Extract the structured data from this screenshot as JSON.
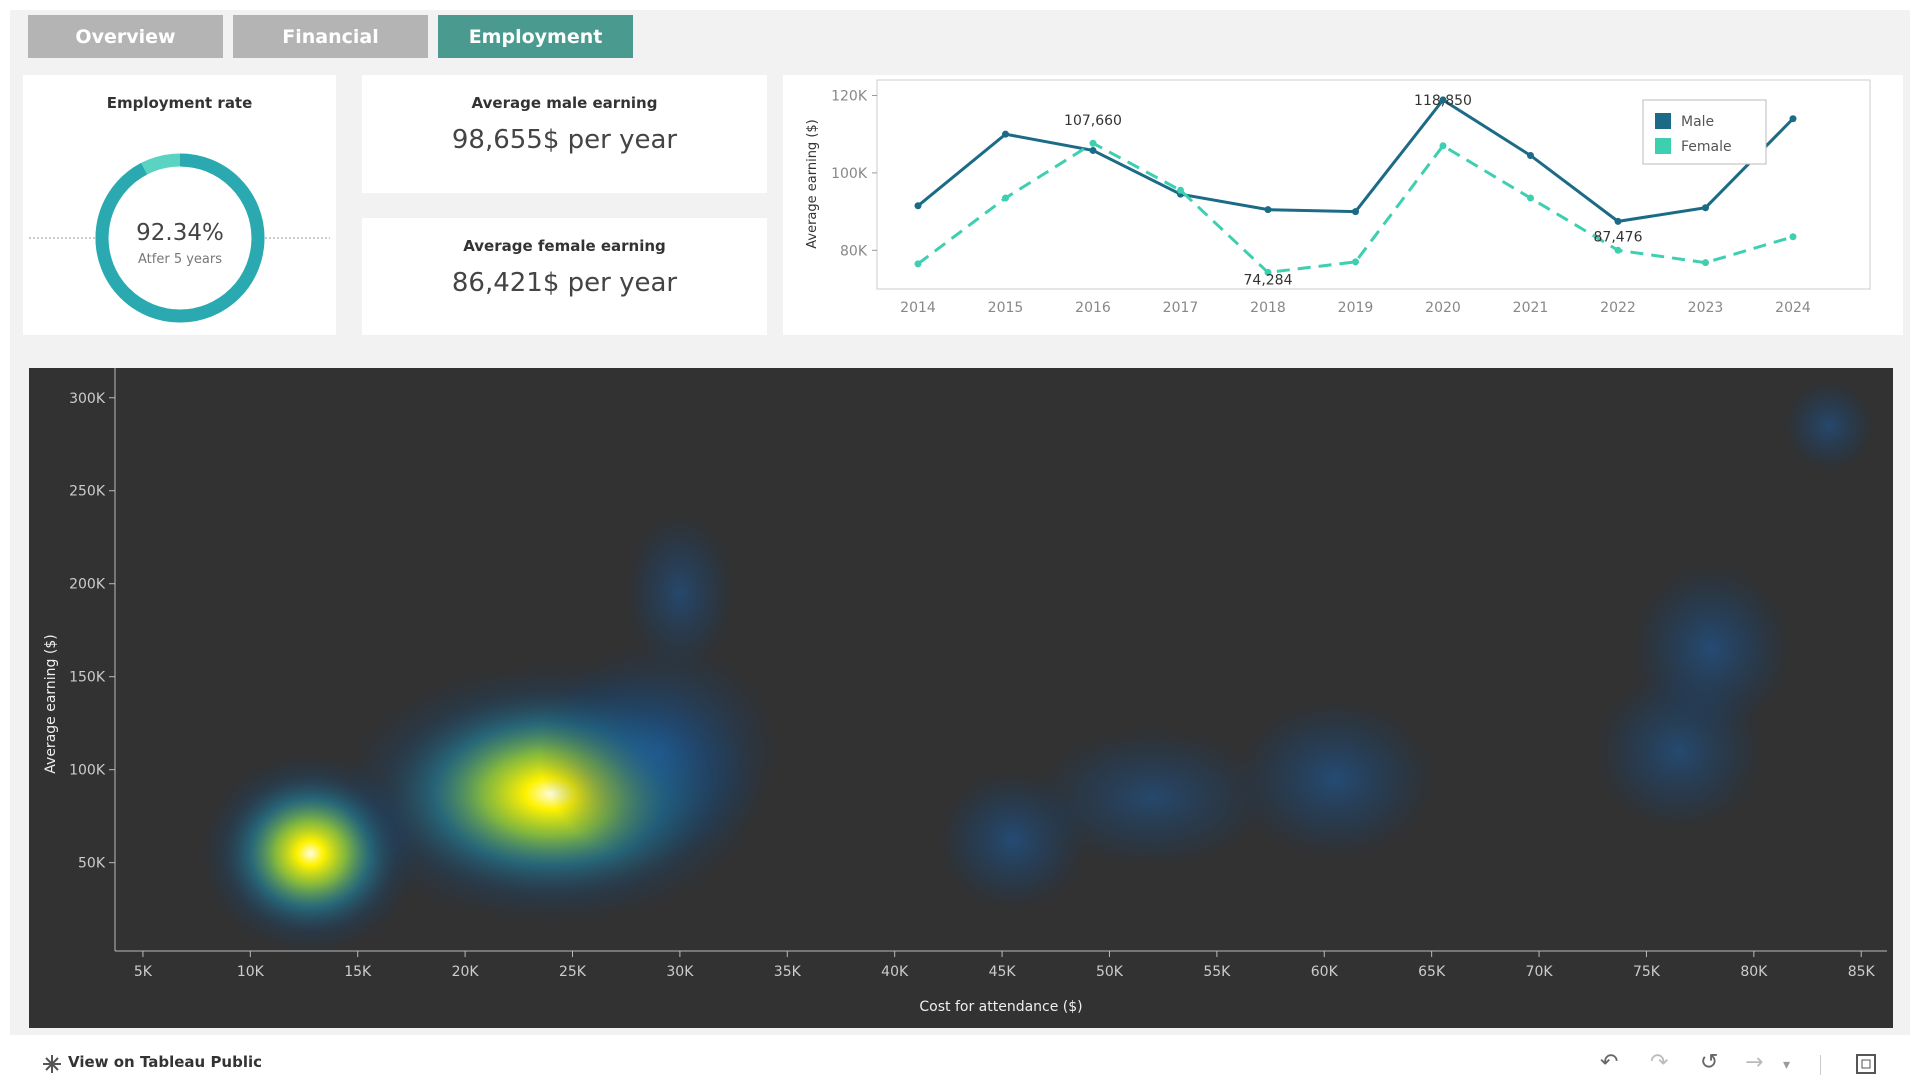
{
  "tabs": [
    {
      "label": "Overview",
      "active": false
    },
    {
      "label": "Financial",
      "active": false
    },
    {
      "label": "Employment",
      "active": true
    }
  ],
  "employment_rate": {
    "title": "Employment rate",
    "value": "92.34%",
    "caption": "Atfer 5 years",
    "rate": 0.9234
  },
  "male_earning": {
    "title": "Average male earning",
    "value": "98,655$ per year"
  },
  "female_earning": {
    "title": "Average female earning",
    "value": "86,421$ per year"
  },
  "colors": {
    "male": "#1b6a86",
    "female": "#3ecfb0",
    "ring": "#2aa9b0",
    "ring_gap": "#5ad3c2",
    "heat_bg": "#323232",
    "tab_active": "#4a9a8f",
    "tab_inactive": "#b4b4b4"
  },
  "chart_data": [
    {
      "type": "line",
      "ylabel": "Average earning ($)",
      "x": [
        "2014",
        "2015",
        "2016",
        "2017",
        "2018",
        "2019",
        "2020",
        "2021",
        "2022",
        "2023",
        "2024"
      ],
      "yticks": [
        "80K",
        "100K",
        "120K"
      ],
      "ytick_values": [
        80000,
        100000,
        120000
      ],
      "ylim": [
        70000,
        124000
      ],
      "series": [
        {
          "name": "Male",
          "style": "solid",
          "values": [
            91500,
            110000,
            105800,
            94500,
            90500,
            90000,
            118850,
            104500,
            87476,
            91000,
            114000
          ]
        },
        {
          "name": "Female",
          "style": "dashed",
          "values": [
            76500,
            93500,
            107660,
            95500,
            74284,
            77000,
            107000,
            93500,
            80000,
            76800,
            83500
          ]
        }
      ],
      "annotations": [
        "107,660",
        "118,850",
        "74,284",
        "87,476"
      ],
      "legend": "top-right"
    },
    {
      "type": "heatmap",
      "xlabel": "Cost for attendance ($)",
      "ylabel": "Average earning ($)",
      "xticks": [
        "5K",
        "10K",
        "15K",
        "20K",
        "25K",
        "30K",
        "35K",
        "40K",
        "45K",
        "50K",
        "55K",
        "60K",
        "65K",
        "70K",
        "75K",
        "80K",
        "85K"
      ],
      "xtick_values": [
        5000,
        10000,
        15000,
        20000,
        25000,
        30000,
        35000,
        40000,
        45000,
        50000,
        55000,
        60000,
        65000,
        70000,
        75000,
        80000,
        85000
      ],
      "yticks": [
        "50K",
        "100K",
        "150K",
        "200K",
        "250K",
        "300K"
      ],
      "ytick_values": [
        50000,
        100000,
        150000,
        200000,
        250000,
        300000
      ],
      "xlim": [
        3700,
        86200
      ],
      "ylim": [
        2500,
        316000
      ],
      "hotspots": [
        {
          "x": 12800,
          "y": 55000,
          "intensity": 1.0
        },
        {
          "x": 24000,
          "y": 87000,
          "intensity": 1.0
        },
        {
          "x": 29000,
          "y": 110000,
          "intensity": 0.35
        },
        {
          "x": 30000,
          "y": 195000,
          "intensity": 0.15
        },
        {
          "x": 45500,
          "y": 62000,
          "intensity": 0.25
        },
        {
          "x": 52000,
          "y": 85000,
          "intensity": 0.15
        },
        {
          "x": 60500,
          "y": 95000,
          "intensity": 0.25
        },
        {
          "x": 76500,
          "y": 110000,
          "intensity": 0.2
        },
        {
          "x": 78000,
          "y": 165000,
          "intensity": 0.25
        },
        {
          "x": 83500,
          "y": 285000,
          "intensity": 0.15
        }
      ]
    }
  ],
  "footer": {
    "link_text": "View on Tableau Public"
  },
  "toolbar": {
    "undo_icon": "undo-icon",
    "redo_icon": "redo-icon",
    "revert_icon": "revert-icon",
    "share_icon": "share-icon",
    "fullscreen_icon": "fullscreen-icon"
  }
}
